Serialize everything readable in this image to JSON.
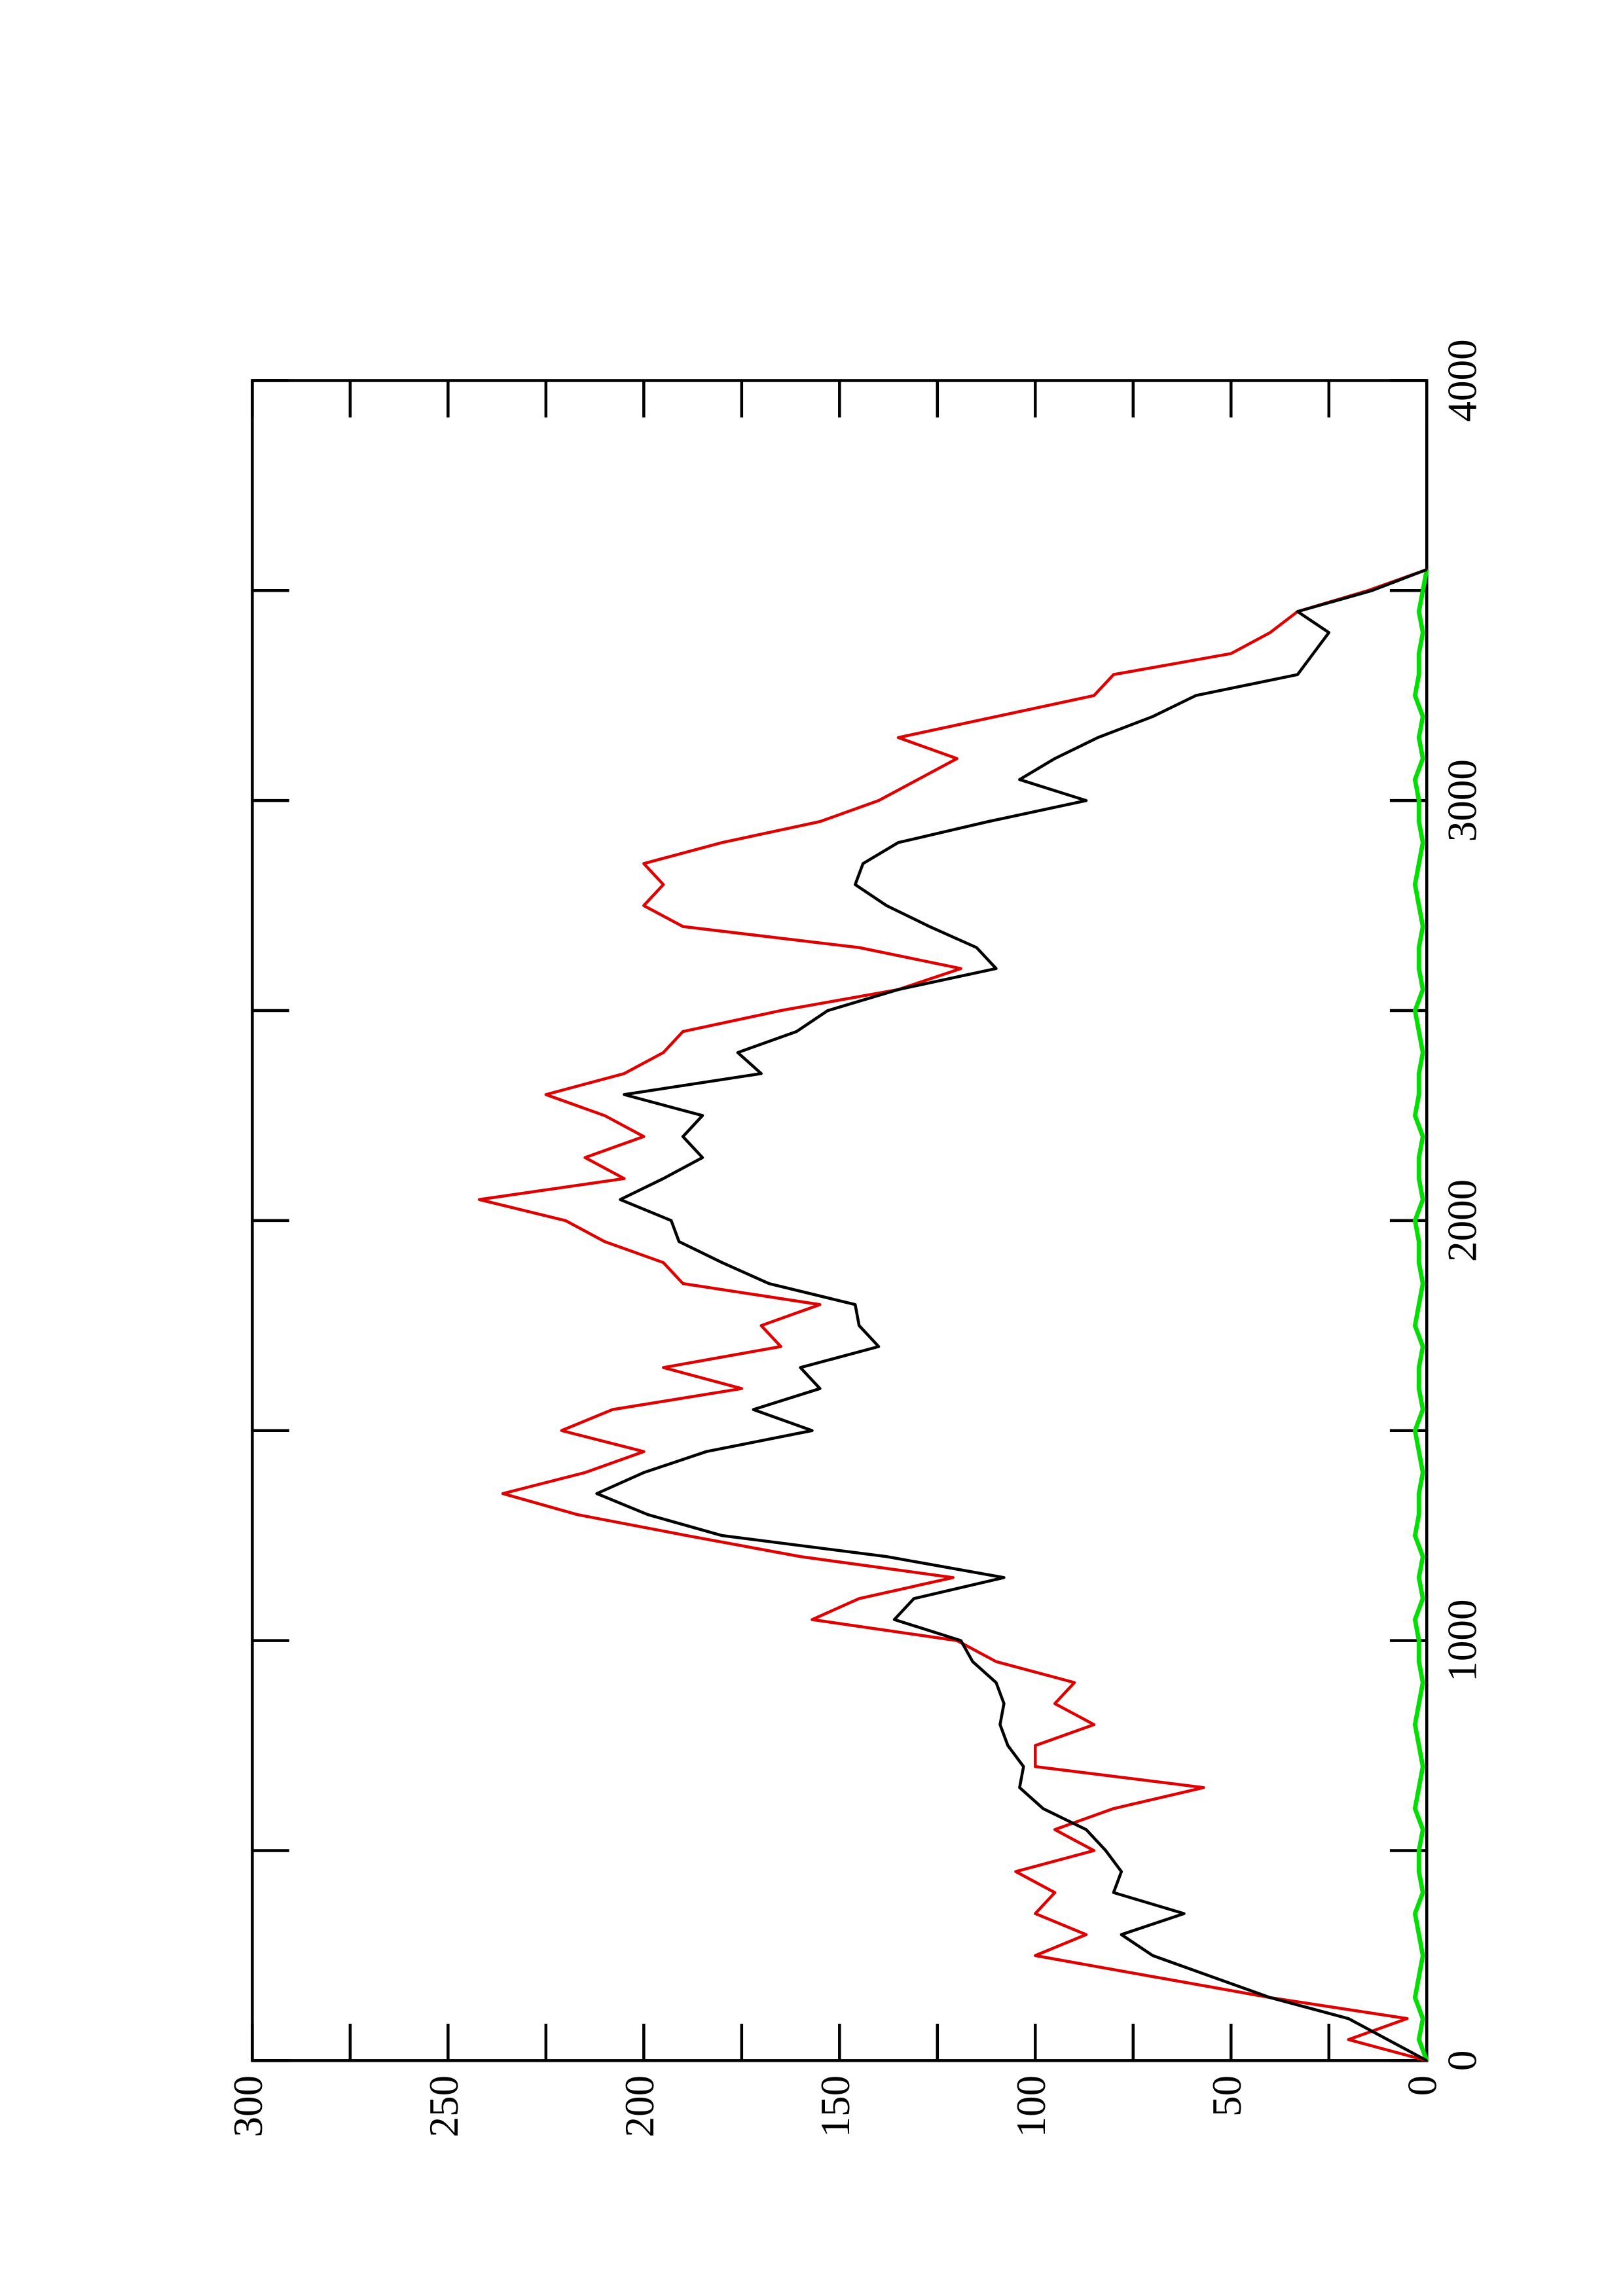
{
  "chart_data": {
    "type": "line",
    "x": [
      0,
      50,
      100,
      150,
      200,
      250,
      300,
      350,
      400,
      450,
      500,
      550,
      600,
      650,
      700,
      750,
      800,
      850,
      900,
      950,
      1000,
      1050,
      1100,
      1150,
      1200,
      1250,
      1300,
      1350,
      1400,
      1450,
      1500,
      1550,
      1600,
      1650,
      1700,
      1750,
      1800,
      1850,
      1900,
      1950,
      2000,
      2050,
      2100,
      2150,
      2200,
      2250,
      2300,
      2350,
      2400,
      2450,
      2500,
      2550,
      2600,
      2650,
      2700,
      2750,
      2800,
      2850,
      2900,
      2950,
      3000,
      3050,
      3100,
      3150,
      3200,
      3250,
      3300,
      3350,
      3400,
      3450,
      3500,
      3550
    ],
    "series": [
      {
        "color": "#000000",
        "values": [
          0,
          10,
          20,
          40,
          55,
          70,
          78,
          62,
          80,
          78,
          82,
          87,
          98,
          104,
          103,
          107,
          109,
          108,
          110,
          116,
          119,
          136,
          131,
          108,
          138,
          180,
          199,
          212,
          200,
          184,
          157,
          172,
          155,
          160,
          140,
          145,
          146,
          168,
          180,
          191,
          193,
          206,
          195,
          185,
          190,
          185,
          205,
          170,
          176,
          161,
          153,
          135,
          110,
          115,
          127,
          138,
          146,
          144,
          135,
          112,
          87,
          104,
          95,
          84,
          70,
          59,
          33,
          29,
          25,
          33,
          14,
          0
        ]
      },
      {
        "color": "#e00000",
        "values": [
          0,
          20,
          5,
          40,
          70,
          100,
          87,
          100,
          95,
          105,
          85,
          95,
          80,
          57,
          100,
          100,
          85,
          95,
          90,
          110,
          120,
          157,
          145,
          121,
          160,
          189,
          217,
          236,
          215,
          200,
          221,
          208,
          175,
          195,
          165,
          170,
          155,
          190,
          195,
          210,
          220,
          242,
          205,
          215,
          200,
          210,
          225,
          205,
          195,
          190,
          165,
          135,
          119,
          145,
          190,
          200,
          195,
          200,
          180,
          155,
          140,
          130,
          120,
          135,
          110,
          85,
          80,
          50,
          40,
          33,
          15,
          0
        ]
      },
      {
        "color": "#00e000",
        "values": [
          0,
          2,
          1,
          3,
          2,
          1,
          2,
          3,
          1,
          2,
          2,
          1,
          3,
          2,
          1,
          2,
          3,
          2,
          1,
          2,
          2,
          3,
          1,
          2,
          1,
          3,
          2,
          2,
          1,
          2,
          3,
          1,
          2,
          2,
          1,
          3,
          2,
          1,
          2,
          2,
          3,
          1,
          2,
          2,
          1,
          3,
          2,
          2,
          1,
          2,
          3,
          1,
          2,
          2,
          1,
          2,
          3,
          2,
          1,
          2,
          2,
          3,
          1,
          2,
          1,
          3,
          2,
          2,
          1,
          2,
          1,
          0
        ]
      }
    ],
    "xlim": [
      0,
      4000
    ],
    "xticks": [
      0,
      1000,
      2000,
      3000,
      4000
    ],
    "x_minor_ticks": [
      500,
      1500,
      2500,
      3500
    ],
    "ylim": [
      0,
      300
    ],
    "yticks": [
      0,
      50,
      100,
      150,
      200,
      250,
      300
    ],
    "y_minor_ticks": [
      25,
      75,
      125,
      175,
      225,
      275
    ],
    "rotated": true
  }
}
